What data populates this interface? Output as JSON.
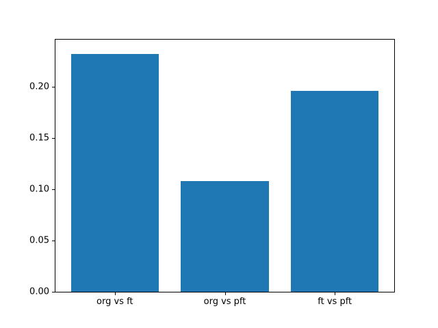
{
  "chart_data": {
    "type": "bar",
    "categories": [
      "org vs ft",
      "org vs pft",
      "ft vs pft"
    ],
    "values": [
      0.232,
      0.108,
      0.196
    ],
    "title": "",
    "xlabel": "",
    "ylabel": "",
    "ylim": [
      0,
      0.246
    ],
    "xlim": [
      -0.54,
      2.54
    ],
    "bar_width": 0.8,
    "ytick_values": [
      0.0,
      0.05,
      0.1,
      0.15,
      0.2
    ],
    "ytick_labels": [
      "0.00",
      "0.05",
      "0.10",
      "0.15",
      "0.20"
    ],
    "bar_color": "#1f77b4",
    "grid": false,
    "legend": null,
    "background_color": "#ffffff",
    "axes_edge_color": "#000000"
  }
}
